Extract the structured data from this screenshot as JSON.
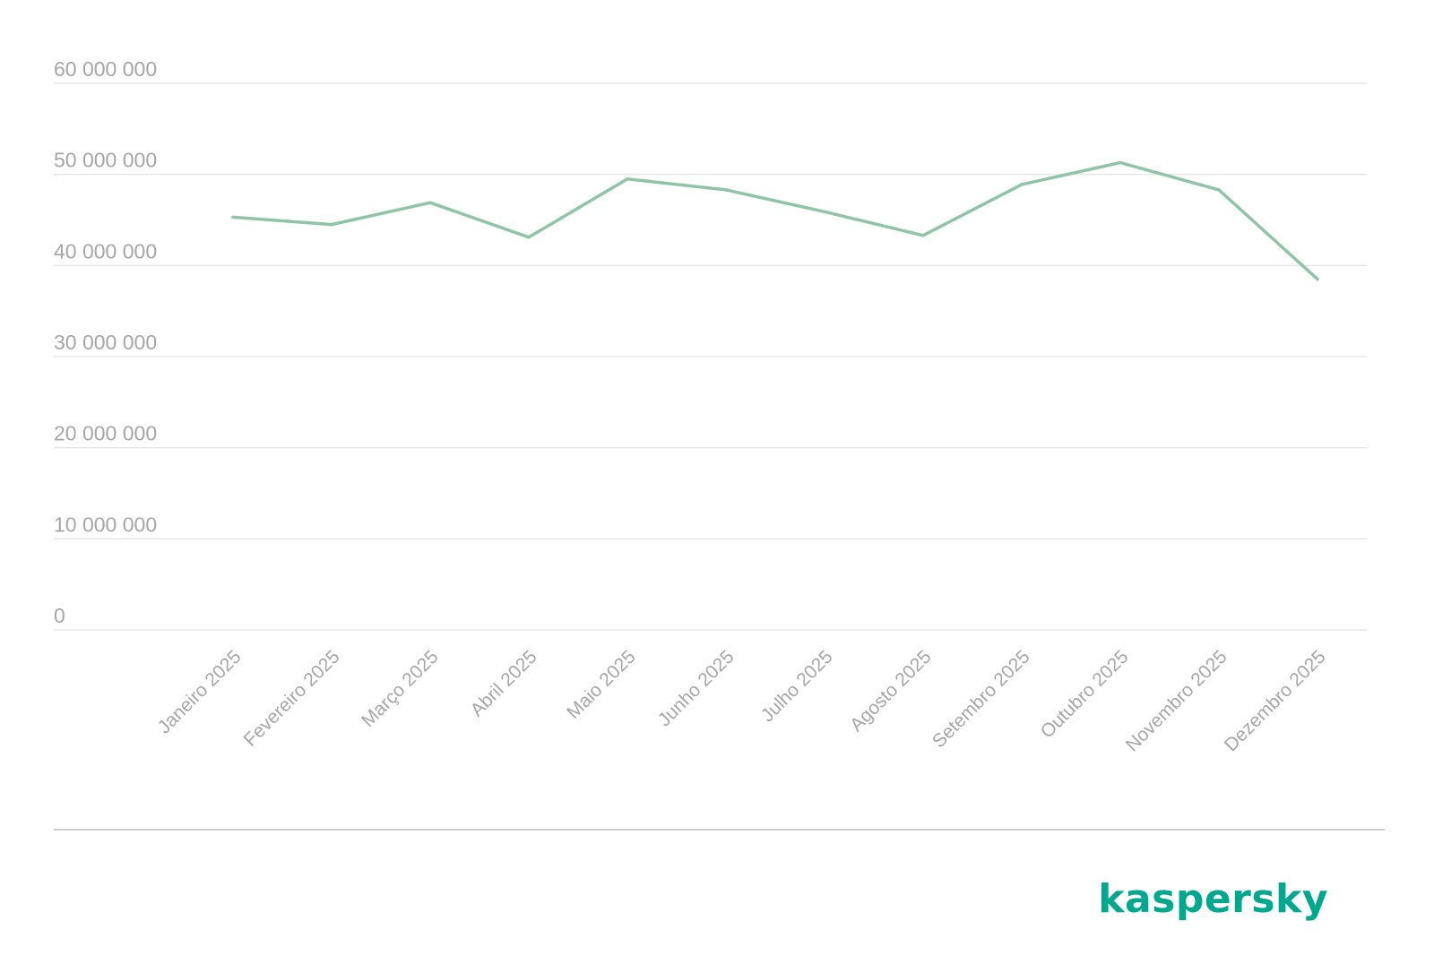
{
  "chart_data": {
    "type": "line",
    "categories": [
      "Janeiro 2025",
      "Fevereiro 2025",
      "Março 2025",
      "Abril 2025",
      "Maio 2025",
      "Junho 2025",
      "Julho 2025",
      "Agosto 2025",
      "Setembro 2025",
      "Outubro 2025",
      "Novembro 2025",
      "Dezembro 2025"
    ],
    "series": [
      {
        "values": [
          45300000,
          44500000,
          46900000,
          43100000,
          49500000,
          48300000,
          45900000,
          43300000,
          48900000,
          51300000,
          48300000,
          38500000
        ]
      }
    ],
    "yticks": [
      0,
      10000000,
      20000000,
      30000000,
      40000000,
      50000000,
      60000000
    ],
    "ytick_labels": [
      "0",
      "10 000 000",
      "20 000 000",
      "30 000 000",
      "40 000 000",
      "50 000 000",
      "60 000 000"
    ],
    "ylim": [
      0,
      60000000
    ],
    "grid": true,
    "legend": "none",
    "colors": {
      "line": "#8fc5a6",
      "text": "#a6a6a6",
      "grid": "#e6e6e6"
    }
  },
  "brand": {
    "logo_text": "kaspersky",
    "color": "#00a88e"
  }
}
